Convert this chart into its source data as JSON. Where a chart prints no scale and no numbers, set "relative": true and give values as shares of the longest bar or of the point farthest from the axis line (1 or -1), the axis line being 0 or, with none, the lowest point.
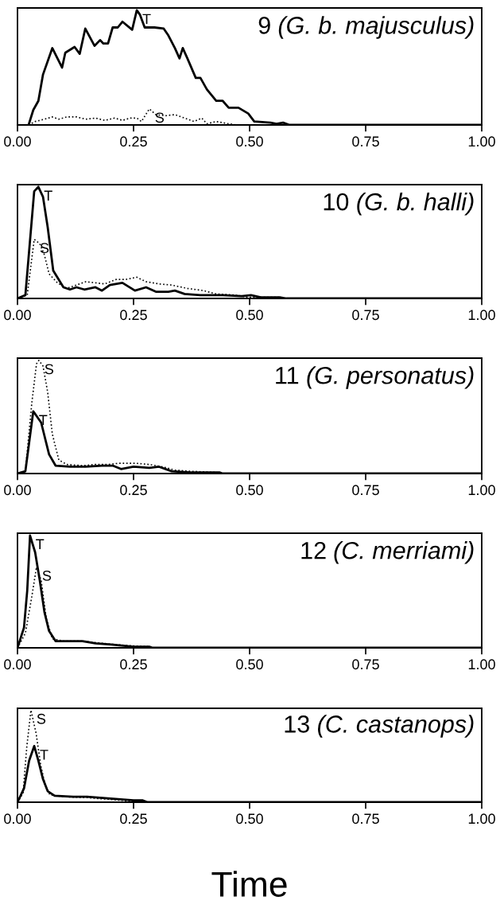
{
  "chart_data": [
    {
      "type": "line",
      "title": "9 (G. b. majusculus)",
      "relative": true,
      "xlim": [
        0,
        1
      ],
      "xticks": [
        {
          "value": 0,
          "label": "0.00"
        },
        {
          "value": 0.25,
          "label": "0.25"
        },
        {
          "value": 0.5,
          "label": "0.50"
        },
        {
          "value": 0.75,
          "label": "0.75"
        },
        {
          "value": 1,
          "label": "1.00"
        }
      ],
      "tick_labels": "x",
      "series": [
        {
          "name": "T",
          "color": "#000000",
          "line_style": "solid",
          "x": [
            0.024,
            0.034,
            0.045,
            0.055,
            0.075,
            0.096,
            0.103,
            0.123,
            0.134,
            0.146,
            0.166,
            0.178,
            0.185,
            0.195,
            0.205,
            0.216,
            0.226,
            0.247,
            0.257,
            0.264,
            0.274,
            0.295,
            0.315,
            0.325,
            0.339,
            0.349,
            0.356,
            0.366,
            0.384,
            0.394,
            0.408,
            0.428,
            0.442,
            0.455,
            0.476,
            0.497,
            0.51,
            0.545,
            0.558,
            0.572,
            0.586,
            1.0
          ],
          "values": [
            0,
            0.13,
            0.21,
            0.44,
            0.67,
            0.5,
            0.63,
            0.68,
            0.62,
            0.84,
            0.69,
            0.74,
            0.71,
            0.71,
            0.85,
            0.85,
            0.9,
            0.83,
            1.0,
            0.96,
            0.85,
            0.85,
            0.84,
            0.78,
            0.67,
            0.58,
            0.67,
            0.58,
            0.41,
            0.41,
            0.31,
            0.21,
            0.21,
            0.15,
            0.15,
            0.1,
            0.03,
            0.02,
            0.01,
            0.02,
            0,
            0
          ]
        },
        {
          "name": "S",
          "color": "#000000",
          "line_style": "dotted",
          "x": [
            0.024,
            0.038,
            0.058,
            0.075,
            0.089,
            0.106,
            0.127,
            0.147,
            0.168,
            0.188,
            0.209,
            0.226,
            0.243,
            0.257,
            0.267,
            0.284,
            0.298,
            0.318,
            0.339,
            0.36,
            0.38,
            0.397,
            0.408,
            0.428,
            0.455,
            0.473,
            1.0
          ],
          "values": [
            0,
            0.03,
            0.05,
            0.07,
            0.05,
            0.07,
            0.07,
            0.05,
            0.06,
            0.04,
            0.06,
            0.04,
            0.06,
            0.06,
            0.03,
            0.14,
            0.09,
            0.08,
            0.09,
            0.06,
            0.03,
            0.06,
            0.01,
            0.03,
            0.01,
            0,
            0
          ]
        }
      ]
    },
    {
      "type": "line",
      "title": "10 (G. b. halli)",
      "relative": true,
      "xlim": [
        0,
        1
      ],
      "xticks": [
        {
          "value": 0,
          "label": "0.00"
        },
        {
          "value": 0.25,
          "label": "0.25"
        },
        {
          "value": 0.5,
          "label": "0.50"
        },
        {
          "value": 0.75,
          "label": "0.75"
        },
        {
          "value": 1,
          "label": "1.00"
        }
      ],
      "tick_labels": "x",
      "series": [
        {
          "name": "T",
          "color": "#000000",
          "line_style": "solid",
          "x": [
            0,
            0.017,
            0.036,
            0.045,
            0.055,
            0.065,
            0.077,
            0.099,
            0.113,
            0.127,
            0.144,
            0.168,
            0.182,
            0.199,
            0.226,
            0.253,
            0.277,
            0.298,
            0.325,
            0.339,
            0.36,
            0.394,
            0.442,
            0.483,
            0.503,
            0.524,
            0.565,
            0.579,
            1.0
          ],
          "values": [
            0,
            0.03,
            0.96,
            1.0,
            0.91,
            0.64,
            0.25,
            0.1,
            0.08,
            0.1,
            0.08,
            0.1,
            0.07,
            0.12,
            0.14,
            0.07,
            0.1,
            0.06,
            0.06,
            0.07,
            0.04,
            0.03,
            0.03,
            0.02,
            0.03,
            0.01,
            0.01,
            0,
            0
          ]
        },
        {
          "name": "S",
          "color": "#000000",
          "line_style": "dotted",
          "x": [
            0,
            0.021,
            0.036,
            0.048,
            0.058,
            0.068,
            0.086,
            0.106,
            0.127,
            0.147,
            0.168,
            0.188,
            0.212,
            0.233,
            0.257,
            0.277,
            0.305,
            0.332,
            0.366,
            0.401,
            0.428,
            0.469,
            0.497,
            0.524,
            0.565,
            0.579,
            1.0
          ],
          "values": [
            0,
            0.03,
            0.53,
            0.49,
            0.39,
            0.22,
            0.14,
            0.09,
            0.12,
            0.15,
            0.14,
            0.13,
            0.17,
            0.17,
            0.19,
            0.15,
            0.13,
            0.12,
            0.09,
            0.07,
            0.04,
            0.03,
            0.01,
            0.01,
            0.01,
            0,
            0
          ]
        }
      ]
    },
    {
      "type": "line",
      "title": "11 (G. personatus)",
      "relative": true,
      "xlim": [
        0,
        1
      ],
      "xticks": [
        {
          "value": 0,
          "label": "0.00"
        },
        {
          "value": 0.25,
          "label": "0.25"
        },
        {
          "value": 0.5,
          "label": "0.50"
        },
        {
          "value": 0.75,
          "label": "0.75"
        },
        {
          "value": 1,
          "label": "1.00"
        }
      ],
      "tick_labels": "x",
      "series": [
        {
          "name": "T",
          "color": "#000000",
          "line_style": "solid",
          "x": [
            0,
            0.017,
            0.034,
            0.051,
            0.068,
            0.082,
            0.113,
            0.147,
            0.182,
            0.205,
            0.223,
            0.25,
            0.284,
            0.305,
            0.332,
            0.373,
            0.435,
            0.442,
            1.0
          ],
          "values": [
            0,
            0.02,
            0.55,
            0.45,
            0.17,
            0.07,
            0.06,
            0.06,
            0.07,
            0.07,
            0.04,
            0.06,
            0.05,
            0.06,
            0.02,
            0.01,
            0.01,
            0,
            0
          ]
        },
        {
          "name": "S",
          "color": "#000000",
          "line_style": "dotted",
          "x": [
            0,
            0.017,
            0.031,
            0.041,
            0.046,
            0.055,
            0.065,
            0.075,
            0.089,
            0.106,
            0.14,
            0.168,
            0.195,
            0.216,
            0.236,
            0.257,
            0.284,
            0.312,
            0.339,
            0.373,
            0.428,
            0.442,
            1.0
          ],
          "values": [
            0,
            0.02,
            0.63,
            0.97,
            1.0,
            0.95,
            0.72,
            0.35,
            0.12,
            0.08,
            0.07,
            0.08,
            0.08,
            0.09,
            0.09,
            0.09,
            0.08,
            0.06,
            0.03,
            0.02,
            0.01,
            0,
            0
          ]
        }
      ]
    },
    {
      "type": "line",
      "title": "12 (C. merriami)",
      "relative": true,
      "xlim": [
        0,
        1
      ],
      "xticks": [
        {
          "value": 0,
          "label": "0.00"
        },
        {
          "value": 0.25,
          "label": "0.25"
        },
        {
          "value": 0.5,
          "label": "0.50"
        },
        {
          "value": 0.75,
          "label": "0.75"
        },
        {
          "value": 1,
          "label": "1.00"
        }
      ],
      "tick_labels": "x",
      "series": [
        {
          "name": "T",
          "color": "#000000",
          "line_style": "solid",
          "x": [
            0,
            0.014,
            0.021,
            0.027,
            0.038,
            0.048,
            0.058,
            0.068,
            0.082,
            0.11,
            0.14,
            0.168,
            0.202,
            0.25,
            0.284,
            0.291,
            1.0
          ],
          "values": [
            0,
            0.18,
            0.51,
            1.0,
            0.85,
            0.6,
            0.32,
            0.15,
            0.06,
            0.06,
            0.06,
            0.04,
            0.03,
            0.01,
            0.01,
            0,
            0
          ]
        },
        {
          "name": "S",
          "color": "#000000",
          "line_style": "dotted",
          "x": [
            0,
            0.017,
            0.031,
            0.041,
            0.051,
            0.062,
            0.075,
            0.099,
            0.14,
            0.182,
            0.236,
            0.284,
            0.291,
            1.0
          ],
          "values": [
            0,
            0.13,
            0.46,
            0.72,
            0.6,
            0.26,
            0.08,
            0.06,
            0.06,
            0.04,
            0.02,
            0.01,
            0,
            0
          ]
        }
      ]
    },
    {
      "type": "line",
      "title": "13 (C. castanops)",
      "xlabel": "Time",
      "relative": true,
      "xlim": [
        0,
        1
      ],
      "xticks": [
        {
          "value": 0,
          "label": "0.00"
        },
        {
          "value": 0.25,
          "label": "0.25"
        },
        {
          "value": 0.5,
          "label": "0.50"
        },
        {
          "value": 0.75,
          "label": "0.75"
        },
        {
          "value": 1,
          "label": "1.00"
        }
      ],
      "tick_labels": "x",
      "series": [
        {
          "name": "T",
          "color": "#000000",
          "line_style": "solid",
          "x": [
            0,
            0.014,
            0.025,
            0.036,
            0.045,
            0.055,
            0.065,
            0.08,
            0.12,
            0.15,
            0.2,
            0.25,
            0.27,
            0.28,
            1.0
          ],
          "values": [
            0,
            0.15,
            0.45,
            0.61,
            0.45,
            0.25,
            0.12,
            0.07,
            0.06,
            0.06,
            0.04,
            0.02,
            0.02,
            0,
            0
          ]
        },
        {
          "name": "S",
          "color": "#000000",
          "line_style": "dotted",
          "x": [
            0,
            0.012,
            0.02,
            0.029,
            0.04,
            0.05,
            0.06,
            0.07,
            0.1,
            0.15,
            0.2,
            0.25,
            0.28,
            1.0
          ],
          "values": [
            0,
            0.1,
            0.6,
            1.0,
            0.75,
            0.4,
            0.18,
            0.08,
            0.06,
            0.05,
            0.03,
            0.01,
            0,
            0
          ]
        }
      ]
    }
  ]
}
